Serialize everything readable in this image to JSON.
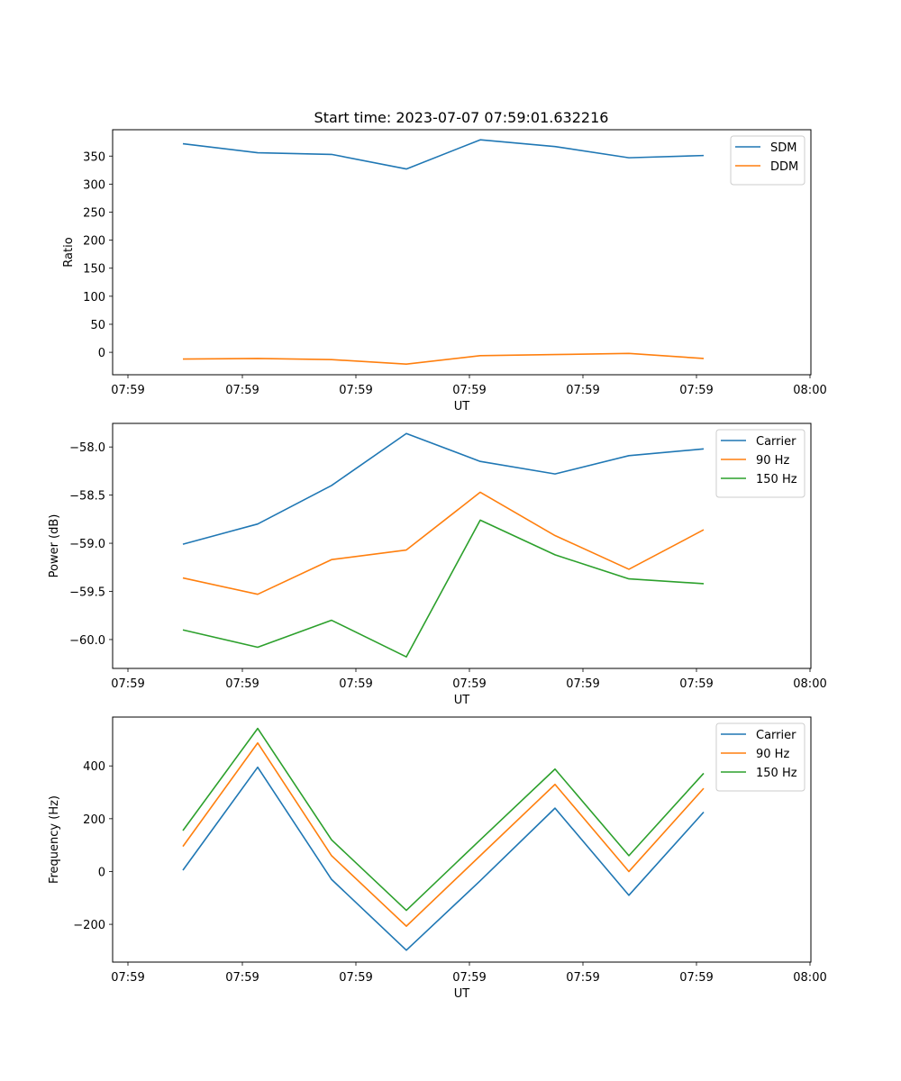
{
  "figure": {
    "title": "Start time: 2023-07-07 07:59:01.632216"
  },
  "chart_data": [
    {
      "type": "line",
      "name": "ratio",
      "xlabel": "UT",
      "ylabel": "Ratio",
      "xtick_labels": [
        "07:59",
        "07:59",
        "07:59",
        "07:59",
        "07:59",
        "07:59",
        "08:00"
      ],
      "ylim": [
        -40,
        397
      ],
      "yticks": [
        0,
        50,
        100,
        150,
        200,
        250,
        300,
        350
      ],
      "ytick_labels": [
        "0",
        "50",
        "100",
        "150",
        "200",
        "250",
        "300",
        "350"
      ],
      "legend_position": "top-right",
      "series": [
        {
          "name": "SDM",
          "color": "#1f77b4",
          "values": [
            372,
            356,
            353,
            327,
            379,
            367,
            347,
            351
          ]
        },
        {
          "name": "DDM",
          "color": "#ff7f0e",
          "values": [
            -12,
            -11,
            -13,
            -21,
            -6,
            -4,
            -2,
            -11
          ]
        }
      ]
    },
    {
      "type": "line",
      "name": "power",
      "xlabel": "UT",
      "ylabel": "Power (dB)",
      "xtick_labels": [
        "07:59",
        "07:59",
        "07:59",
        "07:59",
        "07:59",
        "07:59",
        "08:00"
      ],
      "ylim": [
        -60.3,
        -57.755
      ],
      "yticks": [
        -60.0,
        -59.5,
        -59.0,
        -58.5,
        -58.0
      ],
      "ytick_labels": [
        "−60.0",
        "−59.5",
        "−59.0",
        "−58.5",
        "−58.0"
      ],
      "legend_position": "top-right",
      "series": [
        {
          "name": "Carrier",
          "color": "#1f77b4",
          "values": [
            -59.01,
            -58.8,
            -58.4,
            -57.86,
            -58.15,
            -58.28,
            -58.09,
            -58.02
          ]
        },
        {
          "name": "90 Hz",
          "color": "#ff7f0e",
          "values": [
            -59.36,
            -59.53,
            -59.17,
            -59.07,
            -58.47,
            -58.92,
            -59.27,
            -58.86
          ]
        },
        {
          "name": "150 Hz",
          "color": "#2ca02c",
          "values": [
            -59.9,
            -60.08,
            -59.8,
            -60.18,
            -58.76,
            -59.12,
            -59.37,
            -59.42
          ]
        }
      ]
    },
    {
      "type": "line",
      "name": "frequency",
      "xlabel": "UT",
      "ylabel": "Frequency (Hz)",
      "xtick_labels": [
        "07:59",
        "07:59",
        "07:59",
        "07:59",
        "07:59",
        "07:59",
        "08:00"
      ],
      "ylim": [
        -343,
        585
      ],
      "yticks": [
        -200,
        0,
        200,
        400
      ],
      "ytick_labels": [
        "−200",
        "0",
        "200",
        "400"
      ],
      "legend_position": "top-right",
      "series": [
        {
          "name": "Carrier",
          "color": "#1f77b4",
          "values": [
            5,
            395,
            -30,
            -298,
            -35,
            240,
            -90,
            225
          ]
        },
        {
          "name": "90 Hz",
          "color": "#ff7f0e",
          "values": [
            95,
            487,
            60,
            -207,
            60,
            330,
            0,
            315
          ]
        },
        {
          "name": "150 Hz",
          "color": "#2ca02c",
          "values": [
            155,
            542,
            120,
            -147,
            120,
            388,
            60,
            372
          ]
        }
      ]
    }
  ]
}
